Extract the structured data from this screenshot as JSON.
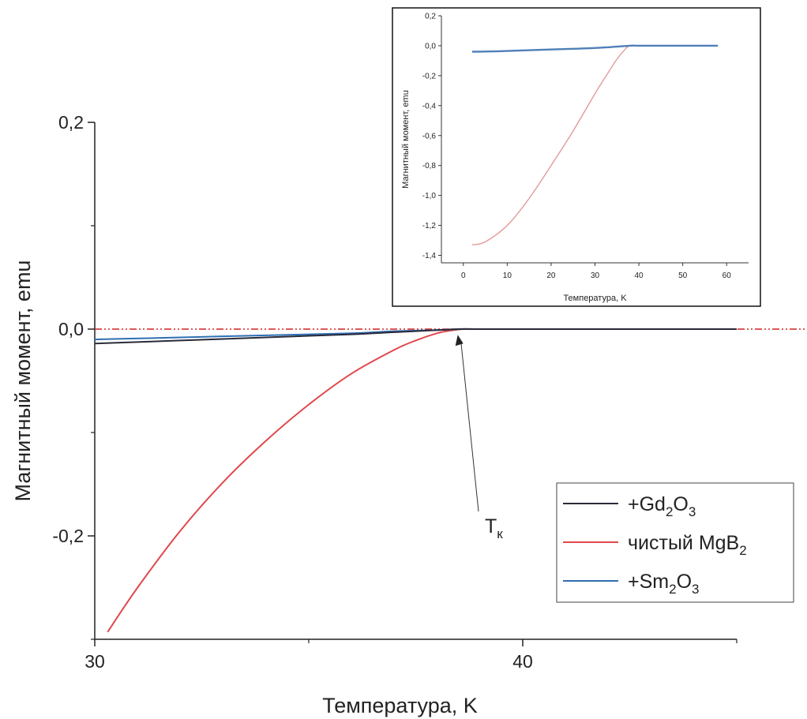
{
  "chart_data": [
    {
      "id": "main",
      "type": "line",
      "xlabel": "Температура, K",
      "ylabel": "Магнитный момент, emu",
      "xlim": [
        30,
        45
      ],
      "ylim": [
        -0.3,
        0.2
      ],
      "x_ticks": [
        30,
        40
      ],
      "x_tick_labels": [
        "30",
        "40"
      ],
      "y_ticks": [
        0.2,
        0.0,
        -0.2
      ],
      "y_tick_labels": [
        "0,2",
        "0,0",
        "-0,2"
      ],
      "reference_line": {
        "y": 0.0,
        "style": "dash-dot-dot",
        "color": "#d22222"
      },
      "annotation": {
        "label": "T",
        "subscript": "к",
        "points_to": {
          "x": 38.5,
          "y": -0.001
        }
      },
      "legend": {
        "placement": "bottom-right",
        "entries": [
          {
            "series": "+Gd2O3",
            "parts": [
              {
                "t": "+Gd"
              },
              {
                "t": "2",
                "sub": true
              },
              {
                "t": "O"
              },
              {
                "t": "3",
                "sub": true
              }
            ]
          },
          {
            "series": "чистый MgB2",
            "parts": [
              {
                "t": "чистый MgB"
              },
              {
                "t": "2",
                "sub": true
              }
            ]
          },
          {
            "series": "+Sm2O3",
            "parts": [
              {
                "t": "+Sm"
              },
              {
                "t": "2",
                "sub": true
              },
              {
                "t": "O"
              },
              {
                "t": "3",
                "sub": true
              }
            ]
          }
        ]
      },
      "series": [
        {
          "name": "+Gd2O3",
          "color": "#2a2a3a",
          "x": [
            30,
            32,
            34,
            36,
            37,
            38,
            38.5,
            39,
            41,
            43,
            45
          ],
          "y": [
            -0.014,
            -0.011,
            -0.008,
            -0.005,
            -0.003,
            -0.001,
            0.0,
            0.0,
            0.0,
            0.0,
            0.0
          ]
        },
        {
          "name": "чистый MgB2",
          "color": "#e0484c",
          "x": [
            30.3,
            31,
            32,
            33,
            34,
            35,
            36,
            37,
            37.5,
            38,
            38.3,
            38.6,
            39,
            41,
            43,
            45
          ],
          "y": [
            -0.293,
            -0.25,
            -0.195,
            -0.148,
            -0.108,
            -0.073,
            -0.043,
            -0.02,
            -0.011,
            -0.004,
            -0.0015,
            0.0,
            0.0,
            0.0,
            0.0,
            0.0
          ]
        },
        {
          "name": "+Sm2O3",
          "color": "#2f6fb3",
          "x": [
            30,
            32,
            34,
            36,
            37,
            38,
            38.5,
            39,
            41,
            43,
            45
          ],
          "y": [
            -0.01,
            -0.008,
            -0.006,
            -0.004,
            -0.002,
            -0.001,
            0.0,
            0.0,
            0.0,
            0.0,
            0.0
          ]
        }
      ]
    },
    {
      "id": "inset",
      "type": "line",
      "xlabel": "Температура, K",
      "ylabel": "Магнитный момент, emu",
      "xlim": [
        -5,
        65
      ],
      "ylim": [
        -1.45,
        0.2
      ],
      "x_ticks": [
        0,
        10,
        20,
        30,
        40,
        50,
        60
      ],
      "x_tick_labels": [
        "0",
        "10",
        "20",
        "30",
        "40",
        "50",
        "60"
      ],
      "y_ticks": [
        0.2,
        0.0,
        -0.2,
        -0.4,
        -0.6,
        -0.8,
        -1.0,
        -1.2,
        -1.4
      ],
      "y_tick_labels": [
        "0,2",
        "0,0",
        "-0,2",
        "-0,4",
        "-0,6",
        "-0,8",
        "-1,0",
        "-1,2",
        "-1,4"
      ],
      "series": [
        {
          "name": "чистый MgB2",
          "color": "#e39a9a",
          "x": [
            2,
            5,
            10,
            15,
            20,
            25,
            30,
            33,
            35,
            37,
            38,
            40,
            50,
            58
          ],
          "y": [
            -1.33,
            -1.31,
            -1.2,
            -1.02,
            -0.8,
            -0.57,
            -0.32,
            -0.18,
            -0.09,
            -0.02,
            0.0,
            0.0,
            0.0,
            0.0
          ]
        },
        {
          "name": "+Gd2O3 / +Sm2O3",
          "color": "#4f7fb8",
          "x": [
            2,
            10,
            20,
            30,
            38,
            40,
            50,
            58
          ],
          "y": [
            -0.04,
            -0.035,
            -0.025,
            -0.015,
            0.0,
            0.0,
            0.0,
            0.0
          ]
        }
      ]
    }
  ]
}
